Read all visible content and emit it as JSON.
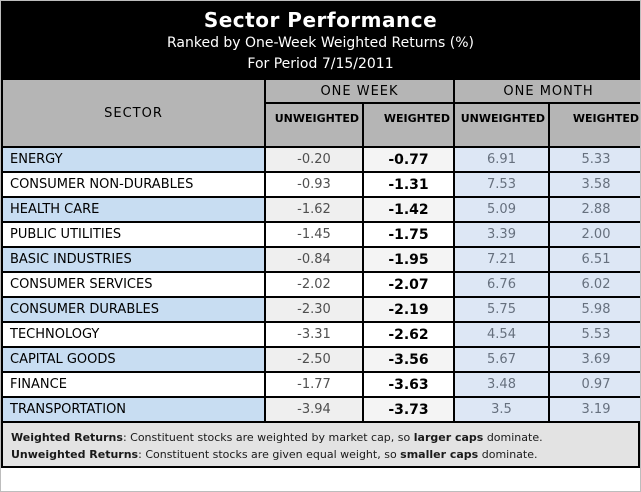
{
  "header": {
    "title": "Sector Performance",
    "subtitle": "Ranked by One-Week Weighted Returns (%)",
    "period": "For Period 7/15/2011"
  },
  "table": {
    "sector_header": "SECTOR",
    "groups": [
      "ONE WEEK",
      "ONE MONTH"
    ],
    "subheaders": [
      "UNWEIGHTED",
      "WEIGHTED",
      "UNWEIGHTED",
      "WEIGHTED"
    ],
    "rows": [
      {
        "sector": "ENERGY",
        "week_unweighted": "-0.20",
        "week_weighted": "-0.77",
        "month_unweighted": "6.91",
        "month_weighted": "5.33"
      },
      {
        "sector": "CONSUMER NON-DURABLES",
        "week_unweighted": "-0.93",
        "week_weighted": "-1.31",
        "month_unweighted": "7.53",
        "month_weighted": "3.58"
      },
      {
        "sector": "HEALTH CARE",
        "week_unweighted": "-1.62",
        "week_weighted": "-1.42",
        "month_unweighted": "5.09",
        "month_weighted": "2.88"
      },
      {
        "sector": "PUBLIC UTILITIES",
        "week_unweighted": "-1.45",
        "week_weighted": "-1.75",
        "month_unweighted": "3.39",
        "month_weighted": "2.00"
      },
      {
        "sector": "BASIC INDUSTRIES",
        "week_unweighted": "-0.84",
        "week_weighted": "-1.95",
        "month_unweighted": "7.21",
        "month_weighted": "6.51"
      },
      {
        "sector": "CONSUMER SERVICES",
        "week_unweighted": "-2.02",
        "week_weighted": "-2.07",
        "month_unweighted": "6.76",
        "month_weighted": "6.02"
      },
      {
        "sector": "CONSUMER DURABLES",
        "week_unweighted": "-2.30",
        "week_weighted": "-2.19",
        "month_unweighted": "5.75",
        "month_weighted": "5.98"
      },
      {
        "sector": "TECHNOLOGY",
        "week_unweighted": "-3.31",
        "week_weighted": "-2.62",
        "month_unweighted": "4.54",
        "month_weighted": "5.53"
      },
      {
        "sector": "CAPITAL GOODS",
        "week_unweighted": "-2.50",
        "week_weighted": "-3.56",
        "month_unweighted": "5.67",
        "month_weighted": "3.69"
      },
      {
        "sector": "FINANCE",
        "week_unweighted": "-1.77",
        "week_weighted": "-3.63",
        "month_unweighted": "3.48",
        "month_weighted": "0.97"
      },
      {
        "sector": "TRANSPORTATION",
        "week_unweighted": "-3.94",
        "week_weighted": "-3.73",
        "month_unweighted": "3.5",
        "month_weighted": "3.19"
      }
    ]
  },
  "footnotes": {
    "line1": {
      "label": "Weighted Returns",
      "sep": ":  ",
      "text1": "Constituent stocks are weighted by market cap, so ",
      "bold": "larger caps",
      "text2": " dominate."
    },
    "line2": {
      "label": "Unweighted Returns",
      "sep": ":  ",
      "text1": "Constituent stocks are given equal weight, so ",
      "bold": "smaller caps",
      "text2": " dominate."
    }
  },
  "colors": {
    "title_bg": "#000000",
    "title_text": "#ffffff",
    "header_bg": "#b5b5b5",
    "sector_alt_bg": "#c8ddf2",
    "week_alt_bg": "#efefef",
    "month_bg": "#dde7f5",
    "month_text": "#66707e",
    "week_unweighted_text": "#4f4f4f",
    "footnote_bg": "#e3e3e3",
    "grid_border": "#000000"
  },
  "chart_data": {
    "type": "table",
    "title": "Sector Performance",
    "subtitle": "Ranked by One-Week Weighted Returns (%)",
    "period": "For Period 7/15/2011",
    "columns": [
      "SECTOR",
      "ONE WEEK UNWEIGHTED",
      "ONE WEEK WEIGHTED",
      "ONE MONTH UNWEIGHTED",
      "ONE MONTH WEIGHTED"
    ],
    "rows": [
      [
        "ENERGY",
        -0.2,
        -0.77,
        6.91,
        5.33
      ],
      [
        "CONSUMER NON-DURABLES",
        -0.93,
        -1.31,
        7.53,
        3.58
      ],
      [
        "HEALTH CARE",
        -1.62,
        -1.42,
        5.09,
        2.88
      ],
      [
        "PUBLIC UTILITIES",
        -1.45,
        -1.75,
        3.39,
        2.0
      ],
      [
        "BASIC INDUSTRIES",
        -0.84,
        -1.95,
        7.21,
        6.51
      ],
      [
        "CONSUMER SERVICES",
        -2.02,
        -2.07,
        6.76,
        6.02
      ],
      [
        "CONSUMER DURABLES",
        -2.3,
        -2.19,
        5.75,
        5.98
      ],
      [
        "TECHNOLOGY",
        -3.31,
        -2.62,
        4.54,
        5.53
      ],
      [
        "CAPITAL GOODS",
        -2.5,
        -3.56,
        5.67,
        3.69
      ],
      [
        "FINANCE",
        -1.77,
        -3.63,
        3.48,
        0.97
      ],
      [
        "TRANSPORTATION",
        -3.94,
        -3.73,
        3.5,
        3.19
      ]
    ],
    "sorted_by": "ONE WEEK WEIGHTED descending"
  }
}
